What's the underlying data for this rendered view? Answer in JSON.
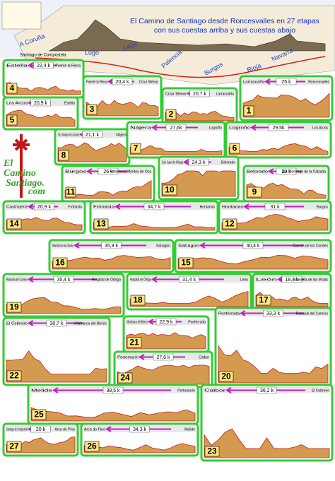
{
  "header": {
    "title_line1": "El Camino de Santiago desde Roncesvalles en 27 etapas",
    "title_line2": "con sus cuestas arriba y sus cuestas abajo"
  },
  "map_labels": [
    "A Coruña",
    "Santiago de Compostela",
    "Lugo",
    "León",
    "Palencia",
    "Burgos",
    "Rioja",
    "Navarra"
  ],
  "logo": {
    "line1": "El",
    "line2": "Camino",
    "line3": "Santiago.",
    "line4": "com"
  },
  "stages": [
    {
      "number": "4",
      "left": "Estella",
      "right": "Puente la Reina",
      "distance": "22,4 k"
    },
    {
      "number": "3",
      "left": "Puente la Reina",
      "right": "Cizur Menor",
      "distance": "20,4 k"
    },
    {
      "number": "2",
      "left": "Cizur Menor",
      "right": "Larrasoaña",
      "distance": "20,7 k"
    },
    {
      "number": "1",
      "left": "Larrasoaña",
      "right": "Roncesvalles",
      "distance": "25 k"
    },
    {
      "number": "5",
      "left": "Los Arcos",
      "right": "Estella",
      "distance": "20,9 k"
    },
    {
      "number": "8",
      "left": "Sto. Domingo de la Calzada",
      "right": "Nájera",
      "distance": "21,1 k"
    },
    {
      "number": "7",
      "left": "Nájera",
      "right": "Logroño",
      "distance": "27,6k"
    },
    {
      "number": "6",
      "left": "Logroño",
      "right": "Los Arcos",
      "distance": "29,5k"
    },
    {
      "number": "11",
      "left": "Burgos",
      "right": "Villafranca Montes de Oca",
      "distance": "26 k"
    },
    {
      "number": "10",
      "left": "San Juan de Ortega",
      "right": "Belorado",
      "distance": "24,3 k"
    },
    {
      "number": "9",
      "left": "Belorado",
      "right": "Sto. Domingo de la Calzada",
      "distance": "23 k"
    },
    {
      "number": "14",
      "left": "Castrojeriz",
      "right": "Frómista",
      "distance": "20,9 k"
    },
    {
      "number": "13",
      "left": "Frómista",
      "right": "Hontanas",
      "distance": "34,7 k"
    },
    {
      "number": "12",
      "left": "Hontanas",
      "right": "Burgos",
      "distance": "31 k"
    },
    {
      "number": "16",
      "left": "Mansilla de las Mulas",
      "right": "Sahagún",
      "distance": "35,8 k"
    },
    {
      "number": "15",
      "left": "Sahagún",
      "right": "Carrión de los Condes",
      "distance": "40,4 k"
    },
    {
      "number": "19",
      "left": "Rabanal del Camino",
      "right": "Hospital de Órbigo",
      "distance": "35,4 k"
    },
    {
      "number": "18",
      "left": "Hospital de Órbigo",
      "right": "León",
      "distance": "31,4 k"
    },
    {
      "number": "17",
      "left": "León",
      "right": "Mansilla de las Mulas",
      "distance": "18,4 k"
    },
    {
      "number": "22",
      "left": "El Cebreiro",
      "right": "Villafranca del Bierzo",
      "distance": "30,7 k"
    },
    {
      "number": "21",
      "left": "Villafranca del Bierzo",
      "right": "Ponferrada",
      "distance": "22,9 k"
    },
    {
      "number": "20",
      "left": "Ponferrada",
      "right": "Rabanal del Camino",
      "distance": "33,3 k"
    },
    {
      "number": "24",
      "left": "Portomarín",
      "right": "Calbor",
      "distance": "27,6 k"
    },
    {
      "number": "25",
      "left": "Melide",
      "right": "Portomarín",
      "distance": "38,5 k"
    },
    {
      "number": "23",
      "left": "Calbor",
      "right": "El Cebreiro",
      "distance": "36,2 k"
    },
    {
      "number": "27",
      "left": "Santiago de Compostela",
      "right": "Arca do Pino",
      "distance": "20 k"
    },
    {
      "number": "26",
      "left": "Arca do Pino",
      "right": "Melide",
      "distance": "34,3 k"
    }
  ]
}
